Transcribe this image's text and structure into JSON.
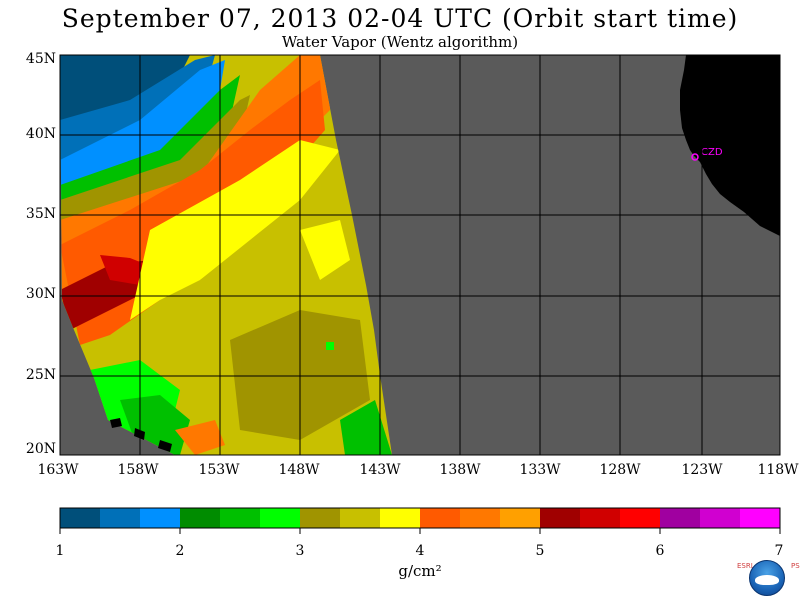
{
  "header": {
    "title": "September 07, 2013  02-04 UTC  (Orbit start time)",
    "subtitle": "Water Vapor (Wentz algorithm)"
  },
  "map": {
    "lat_labels": [
      "45N",
      "40N",
      "35N",
      "30N",
      "25N",
      "20N"
    ],
    "lon_labels": [
      "163W",
      "158W",
      "153W",
      "148W",
      "143W",
      "138W",
      "133W",
      "128W",
      "123W",
      "118W"
    ],
    "lat_range": [
      20,
      45
    ],
    "lon_range": [
      -163,
      -118
    ],
    "station_label": "CZD",
    "colors": {
      "no_data": "#5a5a5a",
      "land": "#000000",
      "gridline": "#000000",
      "station": "#ff00ff"
    }
  },
  "colorbar": {
    "ticks": [
      "1",
      "2",
      "3",
      "4",
      "5",
      "6",
      "7"
    ],
    "range": [
      1,
      7
    ],
    "units": "g/cm²",
    "colors": [
      "#004f7a",
      "#0070b8",
      "#0090ff",
      "#008c00",
      "#00c000",
      "#00ff00",
      "#a09400",
      "#c8c000",
      "#ffff00",
      "#ff5a00",
      "#ff7800",
      "#ffa000",
      "#a00000",
      "#d00000",
      "#ff0000",
      "#a000a0",
      "#d000d0",
      "#ff00ff"
    ]
  },
  "logo": {
    "left_text": "ESRL",
    "right_text": "PSD"
  }
}
